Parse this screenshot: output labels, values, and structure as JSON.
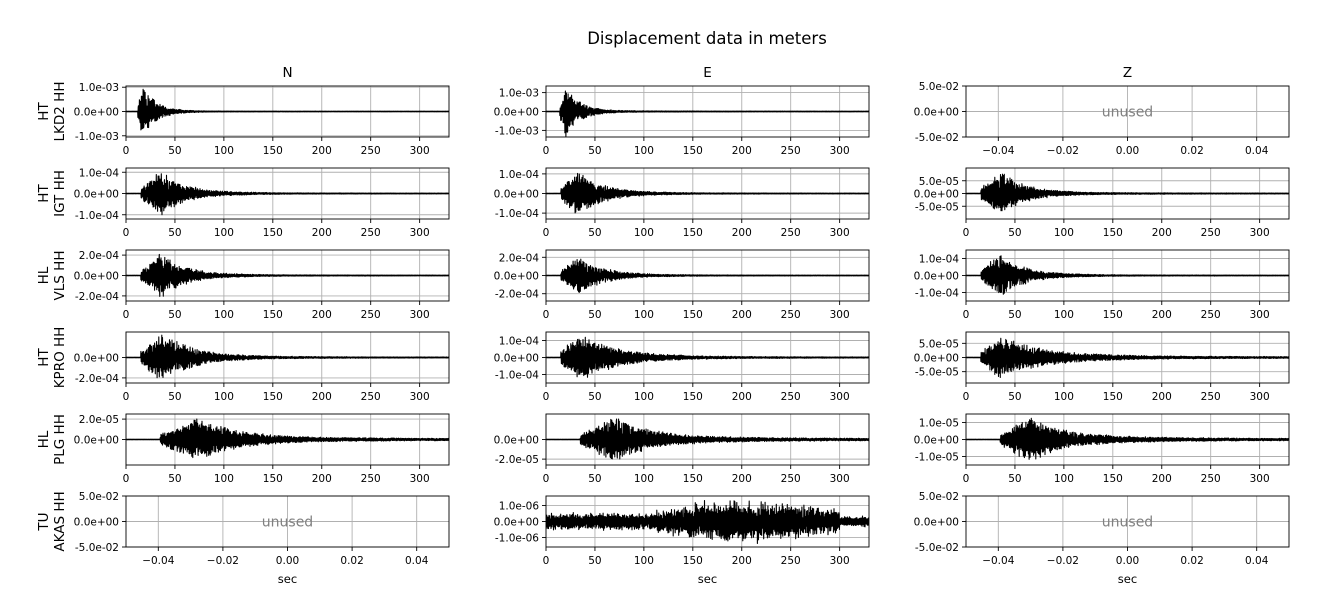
{
  "chart_data": {
    "type": "line",
    "title": "Displacement data in meters",
    "columns": [
      "N",
      "E",
      "Z"
    ],
    "rows": [
      {
        "label": [
          "HT",
          "LKD2 HH"
        ]
      },
      {
        "label": [
          "HT",
          "IGT HH"
        ]
      },
      {
        "label": [
          "HL",
          "VLS HH"
        ]
      },
      {
        "label": [
          "HT",
          "KPRO HH"
        ]
      },
      {
        "label": [
          "HL",
          "PLG HH"
        ]
      },
      {
        "label": [
          "TU",
          "AKAS HH"
        ]
      }
    ],
    "xlabel": "sec",
    "unused_text": "unused",
    "xlim_trace": [
      0,
      330
    ],
    "xticks_trace": [
      0,
      50,
      100,
      150,
      200,
      250,
      300
    ],
    "xlim_unused": [
      -0.05,
      0.05
    ],
    "xticks_unused": [
      -0.04,
      -0.02,
      0.0,
      0.02,
      0.04
    ],
    "xtick_labels_unused": [
      "−0.04",
      "−0.02",
      "0.00",
      "0.02",
      "0.04"
    ],
    "grid": true,
    "panels": [
      {
        "row": 0,
        "col": 0,
        "unused": false,
        "ylim": [
          -0.00105,
          0.00105
        ],
        "yticks": [
          -0.001,
          0,
          0.001
        ],
        "ytick_labels": [
          "-1.0e-03",
          "0.0e+00",
          "1.0e-03"
        ],
        "envelope": {
          "onset": 12,
          "peak_t": 17,
          "peak": 0.0011,
          "decay": 14,
          "tail": 0.018,
          "coda": 0.008
        }
      },
      {
        "row": 0,
        "col": 1,
        "unused": false,
        "ylim": [
          -0.00135,
          0.00135
        ],
        "yticks": [
          -0.001,
          0,
          0.001
        ],
        "ytick_labels": [
          "-1.0e-03",
          "0.0e+00",
          "1.0e-03"
        ],
        "envelope": {
          "onset": 14,
          "peak_t": 20,
          "peak": 0.0014,
          "decay": 14,
          "tail": 0.03,
          "coda": 0.01
        }
      },
      {
        "row": 0,
        "col": 2,
        "unused": true,
        "ylim": [
          -0.05,
          0.05
        ],
        "yticks": [
          -0.05,
          0,
          0.05
        ],
        "ytick_labels": [
          "-5.0e-02",
          "0.0e+00",
          "5.0e-02"
        ]
      },
      {
        "row": 1,
        "col": 0,
        "unused": false,
        "ylim": [
          -0.00012,
          0.00012
        ],
        "yticks": [
          -0.0001,
          0,
          0.0001
        ],
        "ytick_labels": [
          "-1.0e-04",
          "0.0e+00",
          "1.0e-04"
        ],
        "envelope": {
          "onset": 15,
          "peak_t": 35,
          "peak": 0.00011,
          "decay": 25,
          "tail": 0.04,
          "coda": 0.02
        }
      },
      {
        "row": 1,
        "col": 1,
        "unused": false,
        "ylim": [
          -0.00013,
          0.00013
        ],
        "yticks": [
          -0.0001,
          0,
          0.0001
        ],
        "ytick_labels": [
          "-1.0e-04",
          "0.0e+00",
          "1.0e-04"
        ],
        "envelope": {
          "onset": 15,
          "peak_t": 33,
          "peak": 0.00012,
          "decay": 25,
          "tail": 0.04,
          "coda": 0.02
        }
      },
      {
        "row": 1,
        "col": 2,
        "unused": false,
        "ylim": [
          -0.0001,
          0.0001
        ],
        "yticks": [
          -5e-05,
          0,
          5e-05
        ],
        "ytick_labels": [
          "-5.0e-05",
          "0.0e+00",
          "5.0e-05"
        ],
        "envelope": {
          "onset": 15,
          "peak_t": 35,
          "peak": 9e-05,
          "decay": 25,
          "tail": 0.05,
          "coda": 0.025
        }
      },
      {
        "row": 2,
        "col": 0,
        "unused": false,
        "ylim": [
          -0.00025,
          0.00025
        ],
        "yticks": [
          -0.0002,
          0,
          0.0002
        ],
        "ytick_labels": [
          "-2.0e-04",
          "0.0e+00",
          "2.0e-04"
        ],
        "envelope": {
          "onset": 15,
          "peak_t": 35,
          "peak": 0.00023,
          "decay": 25,
          "tail": 0.04,
          "coda": 0.02
        }
      },
      {
        "row": 2,
        "col": 1,
        "unused": false,
        "ylim": [
          -0.00028,
          0.00028
        ],
        "yticks": [
          -0.0002,
          0,
          0.0002
        ],
        "ytick_labels": [
          "-2.0e-04",
          "0.0e+00",
          "2.0e-04"
        ],
        "envelope": {
          "onset": 15,
          "peak_t": 33,
          "peak": 0.00022,
          "decay": 25,
          "tail": 0.04,
          "coda": 0.02
        }
      },
      {
        "row": 2,
        "col": 2,
        "unused": false,
        "ylim": [
          -0.00015,
          0.00015
        ],
        "yticks": [
          -0.0001,
          0,
          0.0001
        ],
        "ytick_labels": [
          "-1.0e-04",
          "0.0e+00",
          "1.0e-04"
        ],
        "envelope": {
          "onset": 15,
          "peak_t": 35,
          "peak": 0.00013,
          "decay": 25,
          "tail": 0.04,
          "coda": 0.02
        }
      },
      {
        "row": 3,
        "col": 0,
        "unused": false,
        "ylim": [
          -0.00025,
          0.00025
        ],
        "yticks": [
          -0.0002,
          0
        ],
        "ytick_labels": [
          "-2.0e-04",
          "0.0e+00"
        ],
        "envelope": {
          "onset": 15,
          "peak_t": 37,
          "peak": 0.00025,
          "decay": 30,
          "tail": 0.05,
          "coda": 0.03
        }
      },
      {
        "row": 3,
        "col": 1,
        "unused": false,
        "ylim": [
          -0.00015,
          0.00015
        ],
        "yticks": [
          -0.0001,
          0,
          0.0001
        ],
        "ytick_labels": [
          "-1.0e-04",
          "0.0e+00",
          "1.0e-04"
        ],
        "envelope": {
          "onset": 15,
          "peak_t": 35,
          "peak": 0.00015,
          "decay": 35,
          "tail": 0.06,
          "coda": 0.03
        }
      },
      {
        "row": 3,
        "col": 2,
        "unused": false,
        "ylim": [
          -9e-05,
          9e-05
        ],
        "yticks": [
          -5e-05,
          0,
          5e-05
        ],
        "ytick_labels": [
          "-5.0e-05",
          "0.0e+00",
          "5.0e-05"
        ],
        "envelope": {
          "onset": 15,
          "peak_t": 35,
          "peak": 8e-05,
          "decay": 40,
          "tail": 0.1,
          "coda": 0.05
        }
      },
      {
        "row": 4,
        "col": 0,
        "unused": false,
        "ylim": [
          -2.5e-05,
          2.5e-05
        ],
        "yticks": [
          0,
          2e-05
        ],
        "ytick_labels": [
          "0.0e+00",
          "2.0e-05"
        ],
        "envelope": {
          "onset": 35,
          "peak_t": 77,
          "peak": 2.2e-05,
          "decay": 35,
          "tail": 0.12,
          "coda": 0.06
        }
      },
      {
        "row": 4,
        "col": 1,
        "unused": false,
        "ylim": [
          -2.6e-05,
          2.6e-05
        ],
        "yticks": [
          -2e-05,
          0
        ],
        "ytick_labels": [
          "-2.0e-05",
          "0.0e+00"
        ],
        "envelope": {
          "onset": 35,
          "peak_t": 70,
          "peak": 2.4e-05,
          "decay": 35,
          "tail": 0.12,
          "coda": 0.06
        }
      },
      {
        "row": 4,
        "col": 2,
        "unused": false,
        "ylim": [
          -1.5e-05,
          1.5e-05
        ],
        "yticks": [
          -1e-05,
          0,
          1e-05
        ],
        "ytick_labels": [
          "-1.0e-05",
          "0.0e+00",
          "1.0e-05"
        ],
        "envelope": {
          "onset": 35,
          "peak_t": 65,
          "peak": 1.4e-05,
          "decay": 35,
          "tail": 0.12,
          "coda": 0.06
        }
      },
      {
        "row": 5,
        "col": 0,
        "unused": true,
        "ylim": [
          -0.05,
          0.05
        ],
        "yticks": [
          -0.05,
          0,
          0.05
        ],
        "ytick_labels": [
          "-5.0e-02",
          "0.0e+00",
          "5.0e-02"
        ]
      },
      {
        "row": 5,
        "col": 1,
        "unused": false,
        "ylim": [
          -1.6e-06,
          1.6e-06
        ],
        "yticks": [
          -1e-06,
          0,
          1e-06
        ],
        "ytick_labels": [
          "-1.0e-06",
          "0.0e+00",
          "1.0e-06"
        ],
        "noise": true,
        "envelope": {
          "onset": 0,
          "peak_t": 140,
          "peak": 1.5e-06,
          "decay": 90,
          "tail": 0.45,
          "coda": 0.3
        }
      },
      {
        "row": 5,
        "col": 2,
        "unused": true,
        "ylim": [
          -0.05,
          0.05
        ],
        "yticks": [
          -0.05,
          0,
          0.05
        ],
        "ytick_labels": [
          "-5.0e-02",
          "0.0e+00",
          "5.0e-02"
        ]
      }
    ]
  }
}
